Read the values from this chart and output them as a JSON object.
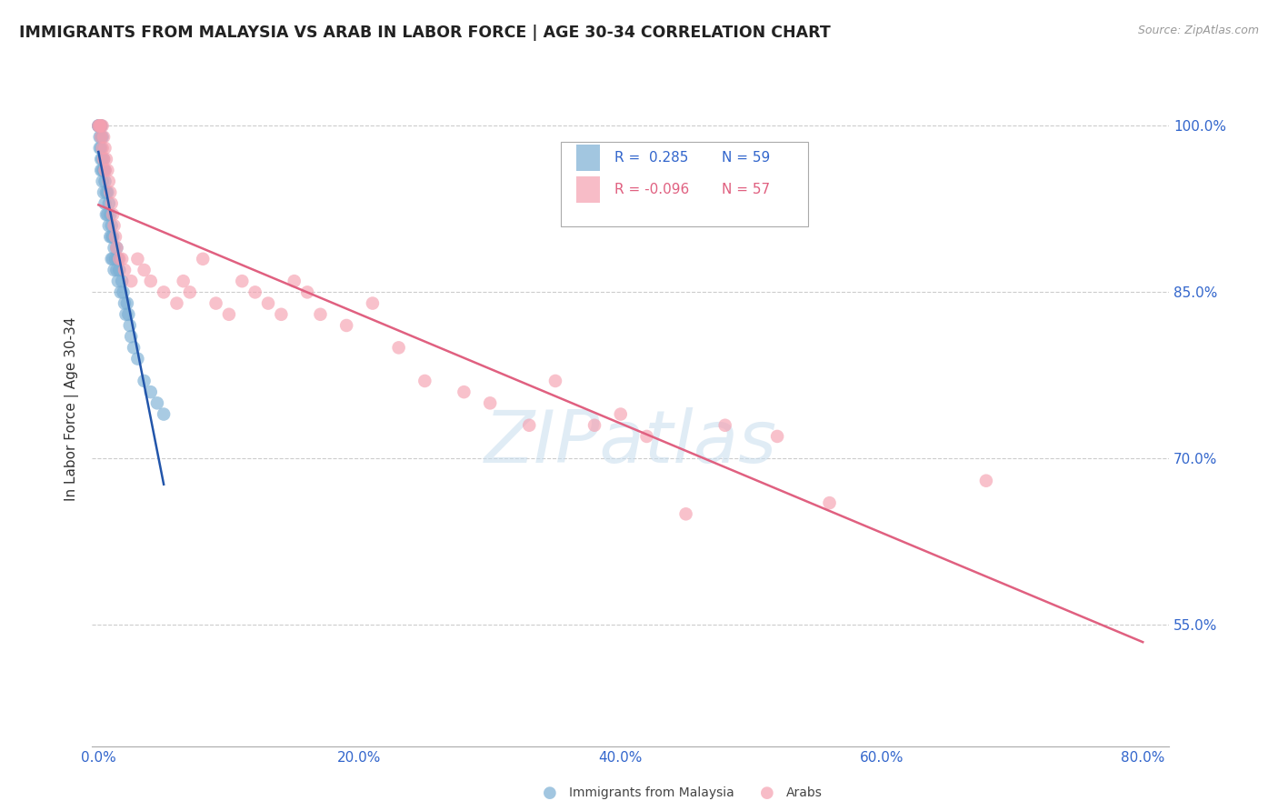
{
  "title": "IMMIGRANTS FROM MALAYSIA VS ARAB IN LABOR FORCE | AGE 30-34 CORRELATION CHART",
  "source": "Source: ZipAtlas.com",
  "ylabel": "In Labor Force | Age 30-34",
  "xlabel_ticks": [
    "0.0%",
    "",
    "",
    "",
    "",
    "20.0%",
    "",
    "",
    "",
    "",
    "40.0%",
    "",
    "",
    "",
    "",
    "60.0%",
    "",
    "",
    "",
    "",
    "80.0%"
  ],
  "xlabel_vals": [
    0.0,
    0.04,
    0.08,
    0.12,
    0.16,
    0.2,
    0.24,
    0.28,
    0.32,
    0.36,
    0.4,
    0.44,
    0.48,
    0.52,
    0.56,
    0.6,
    0.64,
    0.68,
    0.72,
    0.76,
    0.8
  ],
  "xlabel_display_ticks": [
    0.0,
    0.2,
    0.4,
    0.6,
    0.8
  ],
  "xlabel_display_labels": [
    "0.0%",
    "20.0%",
    "40.0%",
    "60.0%",
    "80.0%"
  ],
  "ylabel_ticks": [
    "55.0%",
    "70.0%",
    "85.0%",
    "100.0%"
  ],
  "ylabel_vals": [
    0.55,
    0.7,
    0.85,
    1.0
  ],
  "ylim": [
    0.44,
    1.05
  ],
  "xlim": [
    -0.005,
    0.82
  ],
  "blue_color": "#7BAFD4",
  "pink_color": "#F5A0B0",
  "trend_blue_color": "#2255AA",
  "trend_pink_color": "#E06080",
  "watermark": "ZIPatlas",
  "blue_x": [
    0.0,
    0.0,
    0.001,
    0.001,
    0.001,
    0.001,
    0.001,
    0.002,
    0.002,
    0.002,
    0.002,
    0.002,
    0.002,
    0.003,
    0.003,
    0.003,
    0.003,
    0.004,
    0.004,
    0.004,
    0.005,
    0.005,
    0.005,
    0.006,
    0.006,
    0.007,
    0.007,
    0.008,
    0.008,
    0.009,
    0.009,
    0.01,
    0.01,
    0.01,
    0.011,
    0.011,
    0.012,
    0.012,
    0.013,
    0.014,
    0.014,
    0.015,
    0.015,
    0.016,
    0.017,
    0.018,
    0.019,
    0.02,
    0.021,
    0.022,
    0.023,
    0.024,
    0.025,
    0.027,
    0.03,
    0.035,
    0.04,
    0.045,
    0.05
  ],
  "blue_y": [
    1.0,
    1.0,
    1.0,
    1.0,
    1.0,
    0.99,
    0.98,
    1.0,
    1.0,
    0.99,
    0.98,
    0.97,
    0.96,
    0.99,
    0.97,
    0.96,
    0.95,
    0.97,
    0.96,
    0.94,
    0.96,
    0.95,
    0.93,
    0.94,
    0.92,
    0.94,
    0.92,
    0.93,
    0.91,
    0.92,
    0.9,
    0.91,
    0.9,
    0.88,
    0.9,
    0.88,
    0.89,
    0.87,
    0.88,
    0.89,
    0.87,
    0.88,
    0.86,
    0.87,
    0.85,
    0.86,
    0.85,
    0.84,
    0.83,
    0.84,
    0.83,
    0.82,
    0.81,
    0.8,
    0.79,
    0.77,
    0.76,
    0.75,
    0.74
  ],
  "pink_x": [
    0.0,
    0.001,
    0.001,
    0.002,
    0.002,
    0.003,
    0.003,
    0.004,
    0.004,
    0.005,
    0.005,
    0.006,
    0.007,
    0.008,
    0.009,
    0.01,
    0.011,
    0.012,
    0.013,
    0.014,
    0.016,
    0.018,
    0.02,
    0.025,
    0.03,
    0.035,
    0.04,
    0.05,
    0.06,
    0.065,
    0.07,
    0.08,
    0.09,
    0.1,
    0.11,
    0.12,
    0.13,
    0.14,
    0.15,
    0.16,
    0.17,
    0.19,
    0.21,
    0.23,
    0.25,
    0.28,
    0.3,
    0.33,
    0.35,
    0.38,
    0.4,
    0.42,
    0.45,
    0.48,
    0.52,
    0.56,
    0.68
  ],
  "pink_y": [
    1.0,
    1.0,
    1.0,
    1.0,
    0.99,
    1.0,
    0.98,
    0.99,
    0.97,
    0.98,
    0.96,
    0.97,
    0.96,
    0.95,
    0.94,
    0.93,
    0.92,
    0.91,
    0.9,
    0.89,
    0.88,
    0.88,
    0.87,
    0.86,
    0.88,
    0.87,
    0.86,
    0.85,
    0.84,
    0.86,
    0.85,
    0.88,
    0.84,
    0.83,
    0.86,
    0.85,
    0.84,
    0.83,
    0.86,
    0.85,
    0.83,
    0.82,
    0.84,
    0.8,
    0.77,
    0.76,
    0.75,
    0.73,
    0.77,
    0.73,
    0.74,
    0.72,
    0.65,
    0.73,
    0.72,
    0.66,
    0.68
  ]
}
